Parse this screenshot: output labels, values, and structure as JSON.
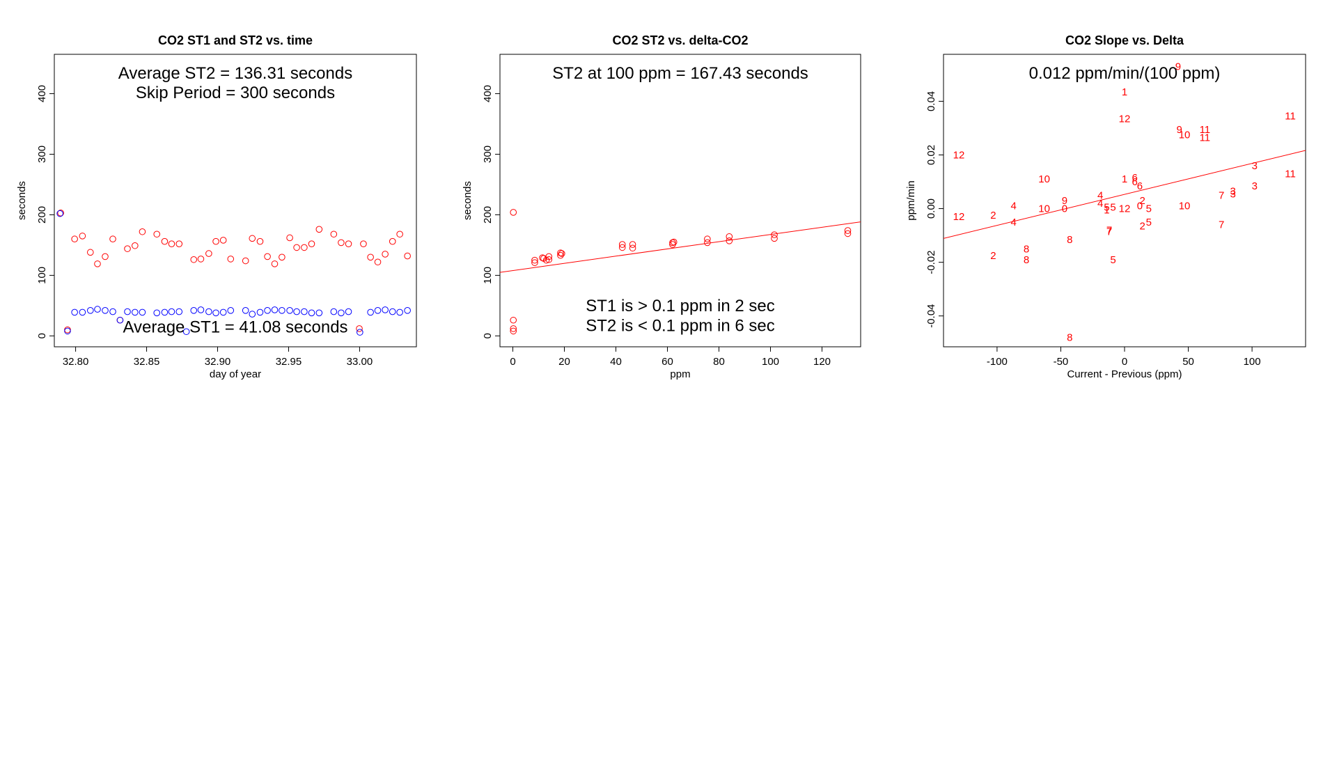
{
  "colors": {
    "red": "#ff0000",
    "blue": "#0000ff",
    "purple": "#8a2be2",
    "dark": "#8b0000",
    "axis": "#000000"
  },
  "chart_data": [
    {
      "type": "scatter",
      "title": "CO2 ST1 and ST2 vs. time",
      "xlabel": "day of year",
      "ylabel": "seconds",
      "xlim": [
        32.785,
        33.04
      ],
      "ylim": [
        -18,
        465
      ],
      "xticks": [
        32.8,
        32.85,
        32.9,
        32.95,
        33.0
      ],
      "xtick_labels": [
        "32.80",
        "32.85",
        "32.90",
        "32.95",
        "33.00"
      ],
      "yticks": [
        0,
        100,
        200,
        300,
        400
      ],
      "ytick_labels": [
        "0",
        "100",
        "200",
        "300",
        "400"
      ],
      "annotations": [
        {
          "text": "Average ST2 =  136.31  seconds",
          "x": 32.9125,
          "y": 434
        },
        {
          "text": "Skip Period =  300  seconds",
          "x": 32.9125,
          "y": 402
        },
        {
          "text": "Average ST1 =  41.08  seconds",
          "x": 32.9125,
          "y": 15
        }
      ],
      "series": [
        {
          "marker": "circle",
          "color": "#ff0000",
          "x": [
            32.7895,
            32.7943,
            32.7993,
            32.8048,
            32.8104,
            32.8154,
            32.8208,
            32.8262,
            32.8313,
            32.8365,
            32.8418,
            32.847,
            32.8572,
            32.8627,
            32.8676,
            32.8729,
            32.8832,
            32.8882,
            32.8938,
            32.8988,
            32.904,
            32.9092,
            32.9197,
            32.9244,
            32.9299,
            32.9351,
            32.9402,
            32.9453,
            32.9508,
            32.9557,
            32.961,
            32.9662,
            32.9715,
            32.9818,
            32.987,
            32.9922,
            32.9998,
            33.0027,
            33.0077,
            33.0128,
            33.018,
            33.0232,
            33.0283,
            33.0337
          ],
          "y": [
            203,
            10,
            160,
            165,
            138,
            119,
            131,
            160,
            26,
            144,
            149,
            172,
            168,
            156,
            152,
            152,
            126,
            127,
            136,
            156,
            158,
            127,
            124,
            161,
            156,
            131,
            119,
            130,
            162,
            146,
            146,
            152,
            176,
            168,
            154,
            152,
            12,
            152,
            130,
            122,
            135,
            156,
            168,
            132
          ]
        },
        {
          "marker": "circle",
          "color": "#0000ff",
          "x": [
            32.789,
            32.7943,
            32.7993,
            32.8048,
            32.8104,
            32.8154,
            32.8208,
            32.8262,
            32.8313,
            32.8365,
            32.8418,
            32.847,
            32.8572,
            32.8627,
            32.8676,
            32.8729,
            32.878,
            32.8832,
            32.8882,
            32.8938,
            32.8988,
            32.904,
            32.9092,
            32.9197,
            32.9244,
            32.9299,
            32.9351,
            32.9402,
            32.9453,
            32.9508,
            32.9557,
            32.961,
            32.9662,
            32.9715,
            32.9818,
            32.987,
            32.9922,
            33.0002,
            33.0077,
            33.0128,
            33.018,
            33.0232,
            33.0283,
            33.0337
          ],
          "y": [
            202,
            8,
            39,
            39,
            42,
            44,
            42,
            40,
            26,
            40,
            39,
            39,
            38,
            39,
            40,
            40,
            7,
            42,
            43,
            40,
            38,
            39,
            42,
            42,
            36,
            39,
            42,
            43,
            42,
            42,
            40,
            40,
            38,
            38,
            40,
            38,
            40,
            6,
            39,
            42,
            43,
            40,
            39,
            42
          ]
        }
      ]
    },
    {
      "type": "scatter",
      "title": "CO2 ST2 vs. delta-CO2",
      "xlabel": "ppm",
      "ylabel": "seconds",
      "xlim": [
        -5,
        135
      ],
      "ylim": [
        -18,
        465
      ],
      "xticks": [
        0,
        20,
        40,
        60,
        80,
        100,
        120
      ],
      "xtick_labels": [
        "0",
        "20",
        "40",
        "60",
        "80",
        "100",
        "120"
      ],
      "yticks": [
        0,
        100,
        200,
        300,
        400
      ],
      "ytick_labels": [
        "0",
        "100",
        "200",
        "300",
        "400"
      ],
      "fit_line": {
        "x": [
          -5,
          135
        ],
        "y": [
          104.9,
          188.3
        ],
        "color": "#ff0000"
      },
      "annotations": [
        {
          "text": "ST2 at 100 ppm =  167.43  seconds",
          "x": 65,
          "y": 434
        },
        {
          "text": "ST1 is > 0.1 ppm in 2 sec",
          "x": 65,
          "y": 50
        },
        {
          "text": "ST2 is < 0.1 ppm in 6 sec",
          "x": 65,
          "y": 17
        }
      ],
      "series": [
        {
          "marker": "circle",
          "color": "#ff0000",
          "x": [
            0.2,
            0.2,
            0.2,
            0.2,
            8.5,
            8.5,
            11.5,
            12,
            13,
            14,
            14,
            18.5,
            18.5,
            19,
            42.5,
            42.5,
            46.5,
            46.5,
            62,
            62,
            62.5,
            75.5,
            75.5,
            84,
            84,
            101.5,
            101.5,
            130,
            130
          ],
          "y": [
            204,
            26,
            12,
            8,
            125,
            121,
            129,
            128,
            125,
            131,
            126,
            137,
            133,
            136,
            151,
            146,
            151,
            145,
            154,
            151,
            155,
            160,
            154,
            164,
            157,
            167,
            161,
            174,
            169
          ]
        }
      ]
    },
    {
      "type": "scatter",
      "title": "CO2 Slope vs. Delta",
      "xlabel": "Current - Previous (ppm)",
      "ylabel": "ppm/min",
      "xlim": [
        -142,
        142
      ],
      "ylim": [
        -0.0515,
        0.0575
      ],
      "xticks": [
        -100,
        -50,
        0,
        50,
        100
      ],
      "xtick_labels": [
        "-100",
        "-50",
        "0",
        "50",
        "100"
      ],
      "yticks": [
        -0.04,
        -0.02,
        0.0,
        0.02,
        0.04
      ],
      "ytick_labels": [
        "-0.04",
        "-0.02",
        "0.00",
        "0.02",
        "0.04"
      ],
      "fit_line": {
        "x": [
          -142,
          142
        ],
        "y": [
          -0.0111,
          0.0217
        ],
        "color": "#ff0000"
      },
      "annotations": [
        {
          "text": "0.012  ppm/min/(100 ppm)",
          "x": 0,
          "y": 0.0505
        }
      ],
      "series": [
        {
          "marker": "text",
          "color": "#ff0000",
          "points": [
            {
              "x": 42,
              "y": 0.053,
              "label": "9"
            },
            {
              "x": 0,
              "y": 0.0435,
              "label": "1"
            },
            {
              "x": 0,
              "y": 0.0335,
              "label": "12"
            },
            {
              "x": 130,
              "y": 0.0345,
              "label": "11"
            },
            {
              "x": 43,
              "y": 0.0295,
              "label": "9"
            },
            {
              "x": 47,
              "y": 0.0275,
              "label": "10"
            },
            {
              "x": 63,
              "y": 0.0295,
              "label": "11"
            },
            {
              "x": 63,
              "y": 0.0265,
              "label": "11"
            },
            {
              "x": -130,
              "y": 0.02,
              "label": "12"
            },
            {
              "x": 102,
              "y": 0.016,
              "label": "3"
            },
            {
              "x": 130,
              "y": 0.013,
              "label": "11"
            },
            {
              "x": -63,
              "y": 0.011,
              "label": "10"
            },
            {
              "x": 0,
              "y": 0.011,
              "label": "1"
            },
            {
              "x": 8,
              "y": 0.0115,
              "label": "6"
            },
            {
              "x": 8,
              "y": 0.01,
              "label": "6"
            },
            {
              "x": 12,
              "y": 0.0085,
              "label": "6"
            },
            {
              "x": 102,
              "y": 0.0085,
              "label": "3"
            },
            {
              "x": 85,
              "y": 0.0065,
              "label": "3"
            },
            {
              "x": 85,
              "y": 0.0055,
              "label": "3"
            },
            {
              "x": 76,
              "y": 0.005,
              "label": "7"
            },
            {
              "x": -19,
              "y": 0.005,
              "label": "4"
            },
            {
              "x": -47,
              "y": 0.003,
              "label": "9"
            },
            {
              "x": -87,
              "y": 0.001,
              "label": "4"
            },
            {
              "x": -19,
              "y": 0.002,
              "label": "4"
            },
            {
              "x": 14,
              "y": 0.003,
              "label": "2"
            },
            {
              "x": 12,
              "y": 0.001,
              "label": "0"
            },
            {
              "x": 47,
              "y": 0.001,
              "label": "10"
            },
            {
              "x": -63,
              "y": 0.0,
              "label": "10"
            },
            {
              "x": -47,
              "y": 0.0,
              "label": "0"
            },
            {
              "x": -14,
              "y": -0.0005,
              "label": "1"
            },
            {
              "x": -14,
              "y": 0.0005,
              "label": "5"
            },
            {
              "x": -9,
              "y": 0.0005,
              "label": "5"
            },
            {
              "x": 0,
              "y": 0.0,
              "label": "12"
            },
            {
              "x": 19,
              "y": 0.0,
              "label": "5"
            },
            {
              "x": -103,
              "y": -0.0025,
              "label": "2"
            },
            {
              "x": -130,
              "y": -0.003,
              "label": "12"
            },
            {
              "x": -87,
              "y": -0.005,
              "label": "4"
            },
            {
              "x": 19,
              "y": -0.005,
              "label": "5"
            },
            {
              "x": 14,
              "y": -0.0065,
              "label": "2"
            },
            {
              "x": 76,
              "y": -0.006,
              "label": "7"
            },
            {
              "x": -12,
              "y": -0.0085,
              "label": "7"
            },
            {
              "x": -12,
              "y": -0.008,
              "label": "7"
            },
            {
              "x": -43,
              "y": -0.0115,
              "label": "8"
            },
            {
              "x": -77,
              "y": -0.015,
              "label": "8"
            },
            {
              "x": -77,
              "y": -0.019,
              "label": "8"
            },
            {
              "x": -103,
              "y": -0.0175,
              "label": "2"
            },
            {
              "x": -9,
              "y": -0.019,
              "label": "5"
            },
            {
              "x": -43,
              "y": -0.048,
              "label": "8"
            }
          ]
        }
      ]
    }
  ]
}
